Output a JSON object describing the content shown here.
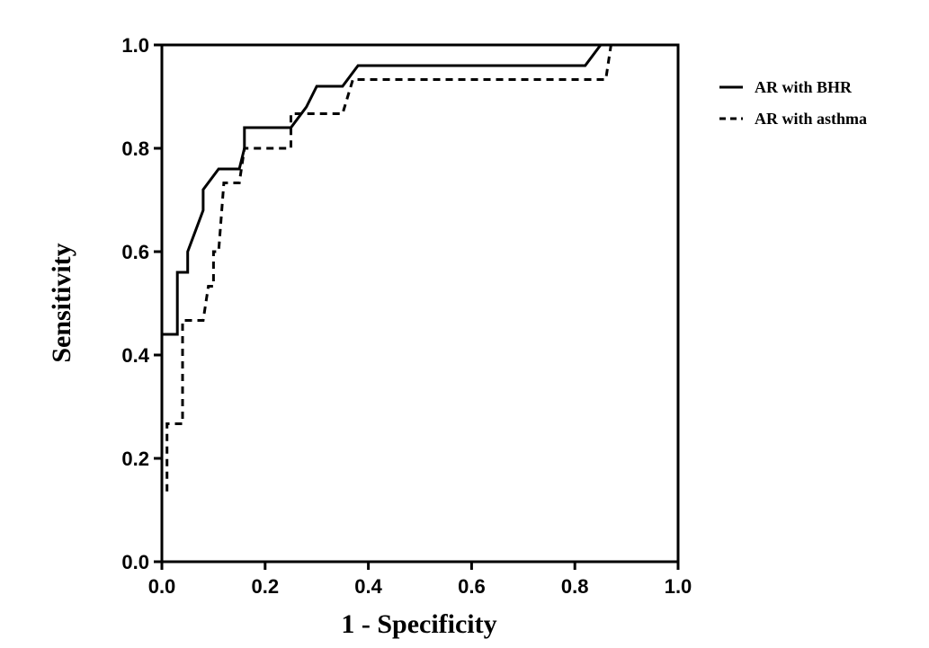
{
  "chart_data": {
    "type": "line",
    "title": "",
    "xlabel": "1 - Specificity",
    "ylabel": "Sensitivity",
    "xlim": [
      0,
      1
    ],
    "ylim": [
      0,
      1
    ],
    "x_ticks": [
      "0.0",
      "0.2",
      "0.4",
      "0.6",
      "0.8",
      "1.0"
    ],
    "y_ticks": [
      "0.0",
      "0.2",
      "0.4",
      "0.6",
      "0.8",
      "1.0"
    ],
    "grid": false,
    "legend_placement": "right",
    "series": [
      {
        "name": "AR with BHR",
        "style": "solid",
        "color": "#000000",
        "points": [
          [
            0,
            0
          ],
          [
            0,
            0.44
          ],
          [
            0.03,
            0.44
          ],
          [
            0.03,
            0.56
          ],
          [
            0.05,
            0.56
          ],
          [
            0.05,
            0.6
          ],
          [
            0.08,
            0.68
          ],
          [
            0.08,
            0.72
          ],
          [
            0.11,
            0.76
          ],
          [
            0.15,
            0.76
          ],
          [
            0.16,
            0.8
          ],
          [
            0.16,
            0.84
          ],
          [
            0.25,
            0.84
          ],
          [
            0.28,
            0.88
          ],
          [
            0.3,
            0.92
          ],
          [
            0.35,
            0.92
          ],
          [
            0.38,
            0.96
          ],
          [
            0.82,
            0.96
          ],
          [
            0.85,
            1.0
          ],
          [
            1.0,
            1.0
          ]
        ]
      },
      {
        "name": "AR with asthma",
        "style": "dashed",
        "color": "#000000",
        "points": [
          [
            0,
            0
          ],
          [
            0,
            0.133
          ],
          [
            0.01,
            0.133
          ],
          [
            0.01,
            0.267
          ],
          [
            0.04,
            0.267
          ],
          [
            0.04,
            0.467
          ],
          [
            0.08,
            0.467
          ],
          [
            0.09,
            0.533
          ],
          [
            0.1,
            0.533
          ],
          [
            0.1,
            0.6
          ],
          [
            0.11,
            0.6
          ],
          [
            0.12,
            0.733
          ],
          [
            0.15,
            0.733
          ],
          [
            0.16,
            0.8
          ],
          [
            0.25,
            0.8
          ],
          [
            0.25,
            0.867
          ],
          [
            0.35,
            0.867
          ],
          [
            0.37,
            0.933
          ],
          [
            0.86,
            0.933
          ],
          [
            0.87,
            1.0
          ],
          [
            1.0,
            1.0
          ]
        ]
      }
    ]
  }
}
